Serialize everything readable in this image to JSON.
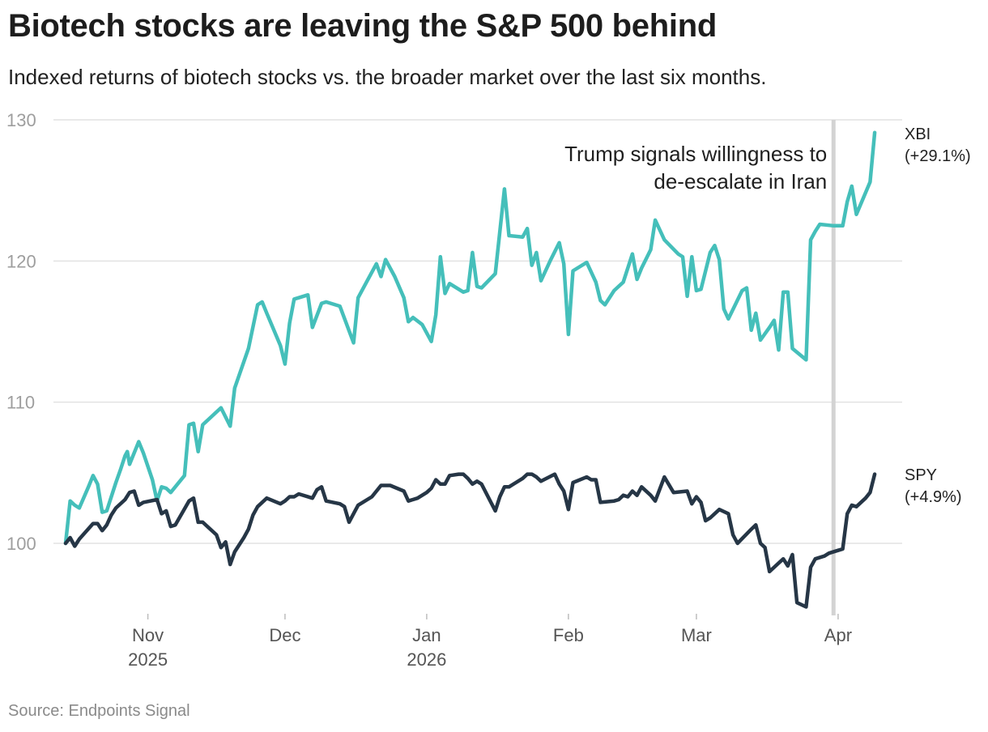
{
  "title": "Biotech stocks are leaving the S&P 500 behind",
  "subtitle": "Indexed returns of biotech stocks vs. the broader market over the last six months.",
  "source": "Source: Endpoints Signal",
  "colors": {
    "xbi": "#45bfba",
    "spy": "#263646",
    "grid": "#e2e2e2",
    "event_line": "#d3d3d3"
  },
  "chart_data": {
    "type": "line",
    "title": "Biotech stocks are leaving the S&P 500 behind",
    "subtitle": "Indexed returns of biotech stocks vs. the broader market over the last six months.",
    "xlabel": "",
    "ylabel": "",
    "ylim": [
      95,
      130
    ],
    "xlim": [
      0,
      180
    ],
    "grid": true,
    "y_ticks": [
      100,
      110,
      120,
      130
    ],
    "x_ticks": [
      {
        "x": 18,
        "label": "Nov",
        "year": "2025"
      },
      {
        "x": 48,
        "label": "Dec",
        "year": ""
      },
      {
        "x": 79,
        "label": "Jan",
        "year": "2026"
      },
      {
        "x": 110,
        "label": "Feb",
        "year": ""
      },
      {
        "x": 138,
        "label": "Mar",
        "year": ""
      },
      {
        "x": 169,
        "label": "Apr",
        "year": ""
      }
    ],
    "annotation": {
      "x": 168,
      "lines": [
        "Trump signals willingness to",
        "de-escalate in Iran"
      ]
    },
    "series": [
      {
        "name": "XBI",
        "end_label": [
          "XBI",
          "(+29.1%)"
        ],
        "points": [
          [
            0,
            100
          ],
          [
            1,
            103
          ],
          [
            2,
            102.7
          ],
          [
            3,
            102.5
          ],
          [
            5,
            104
          ],
          [
            6,
            104.8
          ],
          [
            7,
            104.2
          ],
          [
            8,
            102.2
          ],
          [
            9,
            102.3
          ],
          [
            11,
            104.3
          ],
          [
            12,
            105.2
          ],
          [
            13,
            106.2
          ],
          [
            13.5,
            106.5
          ],
          [
            14,
            105.6
          ],
          [
            16,
            107.2
          ],
          [
            17,
            106.4
          ],
          [
            19,
            104.5
          ],
          [
            20,
            103
          ],
          [
            21,
            104
          ],
          [
            22,
            103.9
          ],
          [
            23,
            103.6
          ],
          [
            26,
            104.8
          ],
          [
            27,
            108.4
          ],
          [
            28,
            108.5
          ],
          [
            29,
            106.5
          ],
          [
            30,
            108.4
          ],
          [
            32,
            109
          ],
          [
            34,
            109.6
          ],
          [
            36,
            108.3
          ],
          [
            37,
            111
          ],
          [
            40,
            113.8
          ],
          [
            42,
            116.9
          ],
          [
            43,
            117.1
          ],
          [
            44,
            116.3
          ],
          [
            47,
            114
          ],
          [
            48,
            112.7
          ],
          [
            49,
            115.6
          ],
          [
            50,
            117.3
          ],
          [
            51,
            117.4
          ],
          [
            53,
            117.6
          ],
          [
            54,
            115.3
          ],
          [
            56,
            117
          ],
          [
            57,
            117.1
          ],
          [
            60,
            116.8
          ],
          [
            63,
            114.2
          ],
          [
            64,
            117.4
          ],
          [
            66,
            118.6
          ],
          [
            68,
            119.8
          ],
          [
            69,
            118.9
          ],
          [
            70,
            120.1
          ],
          [
            72,
            118.9
          ],
          [
            74,
            117.4
          ],
          [
            75,
            115.7
          ],
          [
            76,
            116
          ],
          [
            78,
            115.5
          ],
          [
            80,
            114.3
          ],
          [
            81,
            116.2
          ],
          [
            82,
            120.3
          ],
          [
            83,
            117.7
          ],
          [
            84,
            118.4
          ],
          [
            87,
            117.8
          ],
          [
            88,
            117.9
          ],
          [
            89,
            120.6
          ],
          [
            90,
            118.2
          ],
          [
            91,
            118.1
          ],
          [
            94,
            119.1
          ],
          [
            96,
            125.1
          ],
          [
            97,
            121.8
          ],
          [
            100,
            121.7
          ],
          [
            101,
            122.3
          ],
          [
            102,
            119.7
          ],
          [
            103,
            120.6
          ],
          [
            104,
            118.6
          ],
          [
            106,
            120
          ],
          [
            108,
            121.3
          ],
          [
            109,
            119.8
          ],
          [
            110,
            114.8
          ],
          [
            111,
            119.3
          ],
          [
            114,
            119.9
          ],
          [
            116,
            118.5
          ],
          [
            117,
            117.2
          ],
          [
            118,
            116.9
          ],
          [
            120,
            117.9
          ],
          [
            122,
            118.5
          ],
          [
            124,
            120.5
          ],
          [
            125,
            118.7
          ],
          [
            126,
            119.5
          ],
          [
            128,
            120.8
          ],
          [
            129,
            122.9
          ],
          [
            131,
            121.5
          ],
          [
            134,
            120.5
          ],
          [
            135,
            120.3
          ],
          [
            136,
            117.5
          ],
          [
            137,
            120.3
          ],
          [
            138,
            117.9
          ],
          [
            139,
            118
          ],
          [
            141,
            120.6
          ],
          [
            142,
            121.1
          ],
          [
            143,
            120.1
          ],
          [
            144,
            116.6
          ],
          [
            145,
            115.9
          ],
          [
            148,
            117.9
          ],
          [
            149,
            118.1
          ],
          [
            150,
            115.1
          ],
          [
            151,
            116.3
          ],
          [
            152,
            114.4
          ],
          [
            154,
            115.3
          ],
          [
            155,
            115.8
          ],
          [
            156,
            113.7
          ],
          [
            157,
            117.8
          ],
          [
            158,
            117.8
          ],
          [
            159,
            113.8
          ],
          [
            162,
            113
          ],
          [
            163,
            121.5
          ],
          [
            164,
            122.1
          ],
          [
            165,
            122.6
          ],
          [
            168,
            122.5
          ],
          [
            170,
            122.5
          ],
          [
            171,
            124.2
          ],
          [
            172,
            125.3
          ],
          [
            173,
            123.3
          ],
          [
            176,
            125.6
          ],
          [
            177,
            129.1
          ]
        ]
      },
      {
        "name": "SPY",
        "end_label": [
          "SPY",
          "(+4.9%)"
        ],
        "points": [
          [
            0,
            100
          ],
          [
            1,
            100.4
          ],
          [
            2,
            99.8
          ],
          [
            3,
            100.3
          ],
          [
            6,
            101.4
          ],
          [
            7,
            101.4
          ],
          [
            8,
            100.9
          ],
          [
            9,
            101.3
          ],
          [
            10,
            102
          ],
          [
            11,
            102.5
          ],
          [
            13,
            103.1
          ],
          [
            14,
            103.6
          ],
          [
            15,
            103.7
          ],
          [
            16,
            102.7
          ],
          [
            17,
            102.9
          ],
          [
            20,
            103.1
          ],
          [
            21,
            102.1
          ],
          [
            22,
            102.3
          ],
          [
            23,
            101.2
          ],
          [
            24,
            101.3
          ],
          [
            27,
            103
          ],
          [
            28,
            103.2
          ],
          [
            29,
            101.5
          ],
          [
            30,
            101.5
          ],
          [
            33,
            100.6
          ],
          [
            34,
            99.7
          ],
          [
            35,
            100.1
          ],
          [
            36,
            98.5
          ],
          [
            37,
            99.4
          ],
          [
            39,
            100.4
          ],
          [
            40,
            101
          ],
          [
            41,
            102
          ],
          [
            42,
            102.6
          ],
          [
            44,
            103.2
          ],
          [
            47,
            102.8
          ],
          [
            48,
            103
          ],
          [
            49,
            103.3
          ],
          [
            50,
            103.3
          ],
          [
            51,
            103.5
          ],
          [
            54,
            103.2
          ],
          [
            55,
            103.8
          ],
          [
            56,
            104
          ],
          [
            57,
            103
          ],
          [
            60,
            102.8
          ],
          [
            61,
            102.6
          ],
          [
            62,
            101.5
          ],
          [
            64,
            102.7
          ],
          [
            67,
            103.3
          ],
          [
            69,
            104.1
          ],
          [
            71,
            104.1
          ],
          [
            74,
            103.7
          ],
          [
            75,
            103
          ],
          [
            77,
            103.2
          ],
          [
            79,
            103.6
          ],
          [
            80,
            103.9
          ],
          [
            81,
            104.5
          ],
          [
            82,
            104.2
          ],
          [
            83,
            104.2
          ],
          [
            84,
            104.8
          ],
          [
            86,
            104.9
          ],
          [
            87,
            104.9
          ],
          [
            88,
            104.6
          ],
          [
            89,
            104.2
          ],
          [
            90,
            104.4
          ],
          [
            91,
            104.2
          ],
          [
            94,
            102.3
          ],
          [
            95,
            103.3
          ],
          [
            96,
            104
          ],
          [
            97,
            104
          ],
          [
            100,
            104.6
          ],
          [
            101,
            104.9
          ],
          [
            102,
            104.9
          ],
          [
            103,
            104.7
          ],
          [
            104,
            104.4
          ],
          [
            107,
            104.9
          ],
          [
            108,
            104.2
          ],
          [
            109,
            103.7
          ],
          [
            110,
            102.4
          ],
          [
            111,
            104.3
          ],
          [
            114,
            104.7
          ],
          [
            115,
            104.5
          ],
          [
            116,
            104.5
          ],
          [
            117,
            102.9
          ],
          [
            120,
            103
          ],
          [
            121,
            103.1
          ],
          [
            122,
            103.4
          ],
          [
            123,
            103.3
          ],
          [
            124,
            103.7
          ],
          [
            125,
            103.4
          ],
          [
            126,
            104
          ],
          [
            128,
            103.4
          ],
          [
            129,
            103
          ],
          [
            131,
            104.7
          ],
          [
            133,
            103.6
          ],
          [
            136,
            103.7
          ],
          [
            137,
            102.8
          ],
          [
            138,
            103.3
          ],
          [
            139,
            102.9
          ],
          [
            140,
            101.6
          ],
          [
            141,
            101.8
          ],
          [
            143,
            102.4
          ],
          [
            145,
            102.1
          ],
          [
            146,
            100.6
          ],
          [
            147,
            100
          ],
          [
            150,
            101
          ],
          [
            151,
            101.3
          ],
          [
            152,
            100
          ],
          [
            153,
            99.7
          ],
          [
            154,
            98
          ],
          [
            156,
            98.6
          ],
          [
            157,
            98.9
          ],
          [
            158,
            98.4
          ],
          [
            159,
            99.2
          ],
          [
            160,
            95.8
          ],
          [
            162,
            95.5
          ],
          [
            163,
            98.3
          ],
          [
            164,
            98.9
          ],
          [
            166,
            99.1
          ],
          [
            167,
            99.3
          ],
          [
            169,
            99.5
          ],
          [
            170,
            99.6
          ],
          [
            171,
            102.1
          ],
          [
            172,
            102.7
          ],
          [
            173,
            102.6
          ],
          [
            175,
            103.2
          ],
          [
            176,
            103.6
          ],
          [
            177,
            104.9
          ]
        ]
      }
    ]
  }
}
